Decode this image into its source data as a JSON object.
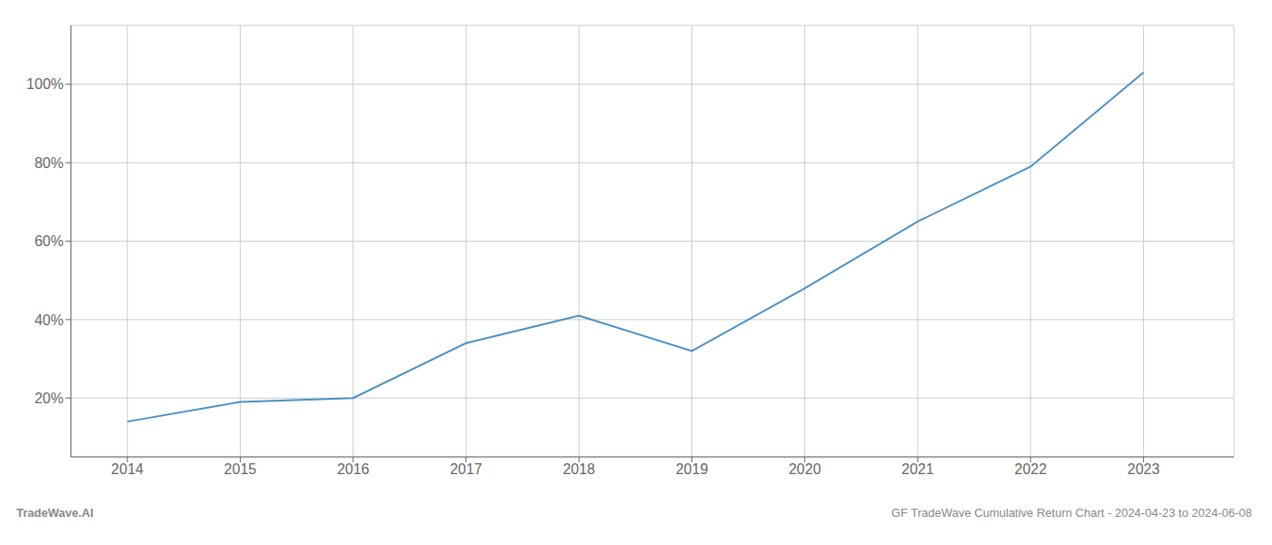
{
  "chart_data": {
    "type": "line",
    "x": [
      2014,
      2015,
      2016,
      2017,
      2018,
      2019,
      2020,
      2021,
      2022,
      2023
    ],
    "values": [
      0.14,
      0.19,
      0.2,
      0.34,
      0.41,
      0.32,
      0.48,
      0.65,
      0.79,
      1.03
    ],
    "color": "#4a90c4",
    "xlim": [
      2013.5,
      2023.8
    ],
    "xticks": [
      2014,
      2015,
      2016,
      2017,
      2018,
      2019,
      2020,
      2021,
      2022,
      2023
    ],
    "ylim": [
      0.05,
      1.15
    ],
    "yticks": [
      {
        "value": 0.2,
        "label": "20%"
      },
      {
        "value": 0.4,
        "label": "40%"
      },
      {
        "value": 0.6,
        "label": "60%"
      },
      {
        "value": 0.8,
        "label": "80%"
      },
      {
        "value": 1.0,
        "label": "100%"
      }
    ],
    "grid": true,
    "annotations": [
      "TradeWave.AI",
      "GF TradeWave Cumulative Return Chart - 2024-04-23 to 2024-06-08"
    ]
  }
}
